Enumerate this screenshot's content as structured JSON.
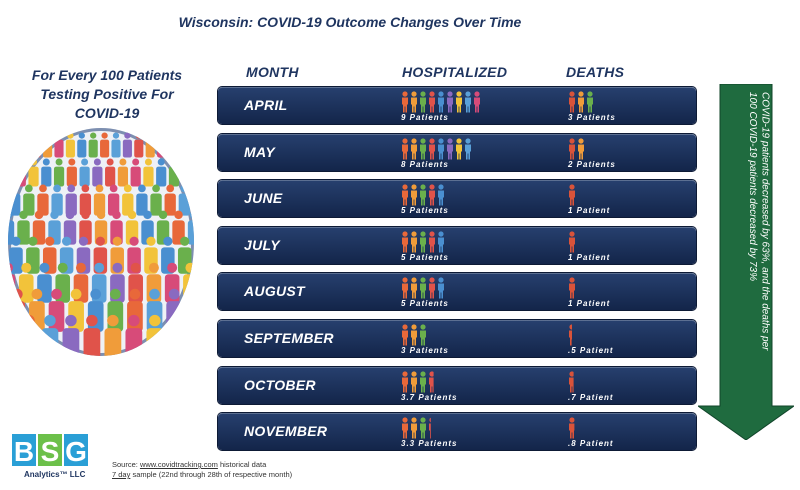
{
  "title": "Wisconsin: COVID-19 Outcome Changes Over Time",
  "left_heading": {
    "line1": "For Every 100 Patients",
    "line2": "Testing Positive For",
    "line3": "COVID-19"
  },
  "columns": {
    "month": "MONTH",
    "hospitalized": "HOSPITALIZED",
    "deaths": "DEATHS"
  },
  "chart_data": {
    "type": "table",
    "title": "Wisconsin: COVID-19 Outcome Changes Over Time",
    "unit": "Patients per 100 COVID-19 positive patients",
    "columns": [
      "MONTH",
      "HOSPITALIZED",
      "DEATHS"
    ],
    "rows": [
      {
        "month": "APRIL",
        "hospitalized": 9,
        "hospitalized_label": "9 Patients",
        "deaths": 3,
        "deaths_label": "3 Patients"
      },
      {
        "month": "MAY",
        "hospitalized": 8,
        "hospitalized_label": "8 Patients",
        "deaths": 2,
        "deaths_label": "2 Patients"
      },
      {
        "month": "JUNE",
        "hospitalized": 5,
        "hospitalized_label": "5 Patients",
        "deaths": 1,
        "deaths_label": "1 Patient"
      },
      {
        "month": "JULY",
        "hospitalized": 5,
        "hospitalized_label": "5 Patients",
        "deaths": 1,
        "deaths_label": "1 Patient"
      },
      {
        "month": "AUGUST",
        "hospitalized": 5,
        "hospitalized_label": "5 Patients",
        "deaths": 1,
        "deaths_label": "1 Patient"
      },
      {
        "month": "SEPTEMBER",
        "hospitalized": 3,
        "hospitalized_label": "3 Patients",
        "deaths": 0.5,
        "deaths_label": ".5 Patient"
      },
      {
        "month": "OCTOBER",
        "hospitalized": 3.7,
        "hospitalized_label": "3.7 Patients",
        "deaths": 0.7,
        "deaths_label": ".7 Patient"
      },
      {
        "month": "NOVEMBER",
        "hospitalized": 3.3,
        "hospitalized_label": "3.3 Patients",
        "deaths": 0.8,
        "deaths_label": ".8 Patient"
      }
    ]
  },
  "arrow_note": "Between April and November, the hospitalizations per 100 COVID-19 patients decreased by 63%, and the deaths per 100 COVID-19 patients decreased by 73%",
  "logo": {
    "mark": "BSG",
    "text": "Analytics™ LLC"
  },
  "source": {
    "prefix": "Source: ",
    "link": "www.covidtracking.com",
    "suffix": " historical data",
    "line2_underlined": "7 day",
    "line2_rest": " sample (22nd through 28th of respective month)"
  },
  "colors": {
    "row_dark": "#13254a",
    "row_light": "#27406f",
    "arrow": "#1f6b3f",
    "person_palette": [
      "#e8683a",
      "#f09c3a",
      "#6ab04c",
      "#e0534a",
      "#4a8fd0",
      "#8a6ac0",
      "#f2c33a",
      "#5aa0d8",
      "#d74b79"
    ],
    "death_color": "#d9533a"
  }
}
